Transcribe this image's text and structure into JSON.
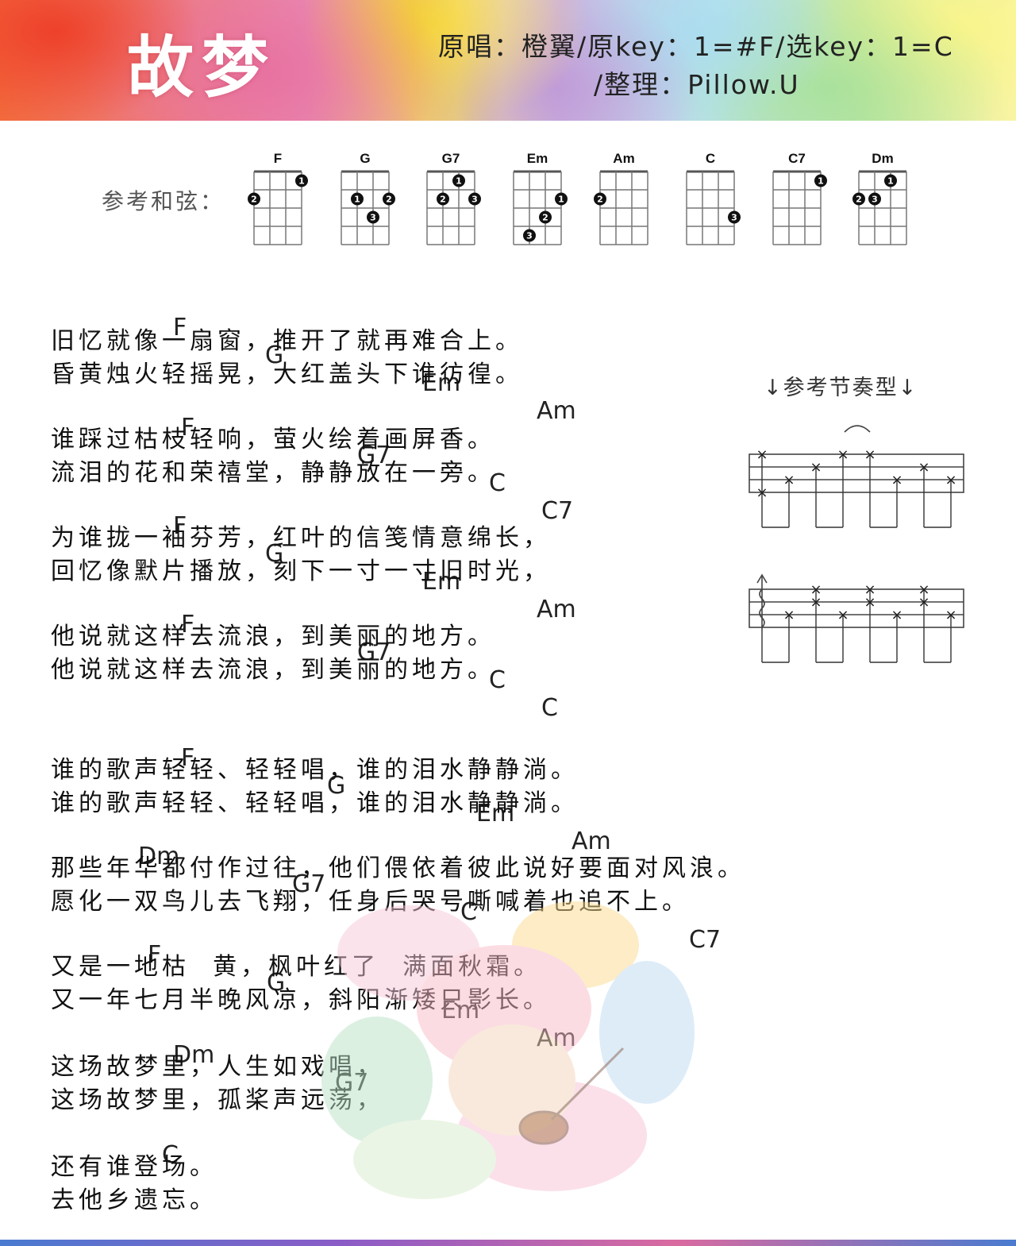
{
  "header": {
    "title": "故梦",
    "meta_line1": "原唱：橙翼/原key：1=#F/选key：1=C",
    "meta_line2": "/整理：Pillow.U"
  },
  "chords_section": {
    "label": "参考和弦：",
    "chords": [
      {
        "name": "F"
      },
      {
        "name": "G"
      },
      {
        "name": "G7"
      },
      {
        "name": "Em"
      },
      {
        "name": "Am"
      },
      {
        "name": "C"
      },
      {
        "name": "C7"
      },
      {
        "name": "Dm"
      }
    ]
  },
  "rhythm": {
    "label": "↓参考节奏型↓"
  },
  "lyrics": {
    "s1_c1": [
      "F",
      "G",
      "Em",
      "Am"
    ],
    "s1_l1": "旧忆就像一扇窗，推开了就再难合上。",
    "s1_l2": "昏黄烛火轻摇晃，大红盖头下谁彷徨。",
    "s1_c2": [
      "F",
      "G7",
      "C",
      "C7"
    ],
    "s1_l3": "谁踩过枯枝轻响，萤火绘着画屏香。",
    "s1_l4": "流泪的花和荣禧堂，静静放在一旁。",
    "s1_c3": [
      "F",
      "G",
      "Em",
      "Am"
    ],
    "s1_l5": "为谁拢一袖芬芳，红叶的信笺情意绵长，",
    "s1_l6": "回忆像默片播放，刻下一寸一寸旧时光，",
    "s1_c4": [
      "F",
      "G7",
      "C",
      "C"
    ],
    "s1_l7": "他说就这样去流浪，到美丽的地方。",
    "s1_l8": "他说就这样去流浪，到美丽的地方。",
    "s2_c1": [
      "F",
      "G",
      "Em",
      "Am"
    ],
    "s2_l1": "谁的歌声轻轻、轻轻唱，谁的泪水静静淌。",
    "s2_l2": "谁的歌声轻轻、轻轻唱，谁的泪水静静淌。",
    "s2_c2": [
      "Dm",
      "G7",
      "C",
      "C7"
    ],
    "s2_l3": "那些年华都付作过往，他们偎依着彼此说好要面对风浪。",
    "s2_l4": "愿化一双鸟儿去飞翔，任身后哭号嘶喊着也追不上。",
    "s2_c3": [
      "F",
      "G",
      "Em",
      "Am"
    ],
    "s2_l5": "又是一地枯  黄，枫叶红了  满面秋霜。",
    "s2_l6": "又一年七月半晚风凉，斜阳渐矮只影长。",
    "s2_c4": [
      "Dm",
      "G7"
    ],
    "s2_l7": "这场故梦里，人生如戏唱，",
    "s2_l8": "这场故梦里，孤桨声远荡，",
    "s2_c5": [
      "C"
    ],
    "s2_l9": "还有谁登场。",
    "s2_l10": "去他乡遗忘。"
  },
  "signature": "Pillow.U"
}
